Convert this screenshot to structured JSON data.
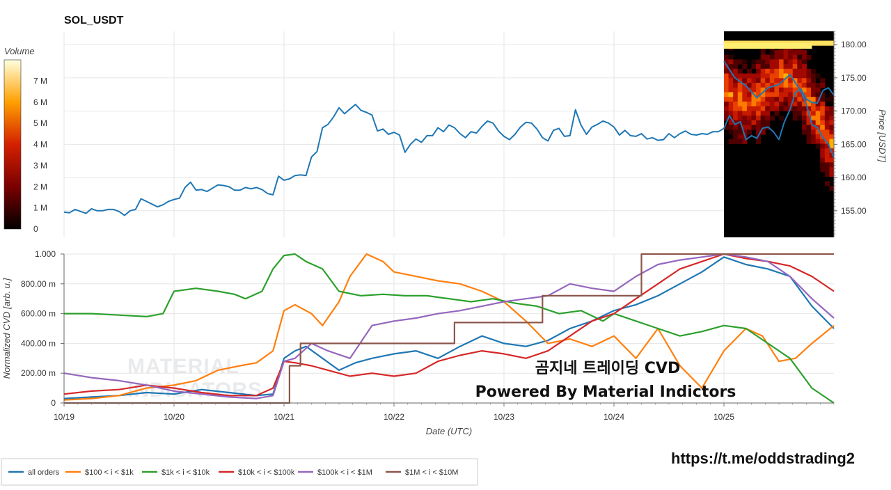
{
  "title": "SOL_USDT",
  "colorbar": {
    "title": "Volume",
    "ticks": [
      "0",
      "1 M",
      "2 M",
      "3 M",
      "4 M",
      "5 M",
      "6 M",
      "7 M"
    ],
    "tick_values": [
      0,
      1,
      2,
      3,
      4,
      5,
      6,
      7
    ],
    "max": 8
  },
  "overlay": {
    "line1": "곰지네 트레이딩 CVD",
    "line2": "Powered By Material Indictors",
    "watermark1": "MATERIAL",
    "watermark2": "INDICATORS"
  },
  "url": "https://t.me/oddstrading2",
  "colors": {
    "all_orders": "#1f77b4",
    "band_100_1k": "#ff7f0e",
    "band_1k_10k": "#2ca02c",
    "band_10k_100k": "#d62728",
    "band_100k_1m": "#9467bd",
    "band_1m_10m": "#8c564b"
  },
  "chart_data": [
    {
      "type": "line",
      "title": "SOL_USDT",
      "xlabel": "",
      "ylabel": "Price [USDT]",
      "xlim": [
        0,
        7.0
      ],
      "ylim": [
        151,
        182
      ],
      "yticks": [
        155,
        160,
        165,
        170,
        175,
        180
      ],
      "ytick_labels": [
        "155.00",
        "160.00",
        "165.00",
        "170.00",
        "175.00",
        "180.00"
      ],
      "grid": true,
      "heatmap_region_x": [
        6.0,
        7.0
      ],
      "series": [
        {
          "name": "",
          "color": "#1f77b4",
          "x": [
            0.0,
            0.05,
            0.1,
            0.15,
            0.2,
            0.25,
            0.3,
            0.35,
            0.4,
            0.45,
            0.5,
            0.55,
            0.6,
            0.65,
            0.7,
            0.75,
            0.8,
            0.85,
            0.9,
            0.95,
            1.0,
            1.05,
            1.1,
            1.15,
            1.2,
            1.25,
            1.3,
            1.35,
            1.4,
            1.45,
            1.5,
            1.55,
            1.6,
            1.65,
            1.7,
            1.75,
            1.8,
            1.85,
            1.9,
            1.95,
            2.0,
            2.05,
            2.1,
            2.15,
            2.2,
            2.25,
            2.3,
            2.35,
            2.4,
            2.45,
            2.5,
            2.55,
            2.6,
            2.65,
            2.7,
            2.75,
            2.8,
            2.85,
            2.9,
            2.95,
            3.0,
            3.05,
            3.1,
            3.15,
            3.2,
            3.25,
            3.3,
            3.35,
            3.4,
            3.45,
            3.5,
            3.55,
            3.6,
            3.65,
            3.7,
            3.75,
            3.8,
            3.85,
            3.9,
            3.95,
            4.0,
            4.05,
            4.1,
            4.15,
            4.2,
            4.25,
            4.3,
            4.35,
            4.4,
            4.45,
            4.5,
            4.55,
            4.6,
            4.65,
            4.7,
            4.75,
            4.8,
            4.85,
            4.9,
            4.95,
            5.0,
            5.05,
            5.1,
            5.15,
            5.2,
            5.25,
            5.3,
            5.35,
            5.4,
            5.45,
            5.5,
            5.55,
            5.6,
            5.65,
            5.7,
            5.75,
            5.8,
            5.85,
            5.9,
            5.95,
            6.0,
            6.05,
            6.1,
            6.15,
            6.2,
            6.25,
            6.3,
            6.35,
            6.4,
            6.45,
            6.5,
            6.55,
            6.6,
            6.65,
            6.7,
            6.75,
            6.8,
            6.85,
            6.9,
            6.95,
            7.0
          ],
          "values": [
            154.8,
            154.7,
            155.2,
            154.9,
            154.6,
            155.3,
            155.0,
            155.0,
            155.2,
            155.2,
            154.9,
            154.3,
            155.0,
            155.2,
            156.8,
            156.4,
            156.0,
            155.6,
            155.9,
            156.4,
            156.7,
            156.9,
            158.5,
            159.3,
            158.1,
            158.2,
            157.9,
            158.4,
            158.9,
            158.8,
            158.6,
            158.1,
            158.1,
            158.5,
            158.3,
            158.5,
            158.2,
            157.6,
            157.4,
            160.2,
            159.6,
            159.8,
            160.3,
            160.4,
            160.3,
            163.1,
            163.9,
            167.5,
            168.0,
            169.1,
            170.5,
            169.6,
            170.3,
            171.0,
            170.1,
            169.8,
            169.4,
            167.0,
            167.3,
            166.5,
            166.8,
            166.4,
            163.8,
            165.0,
            165.8,
            165.3,
            166.3,
            166.3,
            167.5,
            166.9,
            167.9,
            167.5,
            166.6,
            166.0,
            166.9,
            166.7,
            167.7,
            168.5,
            168.2,
            167.0,
            166.2,
            165.7,
            166.5,
            167.6,
            168.3,
            168.2,
            167.3,
            166.0,
            165.5,
            167.1,
            167.4,
            166.2,
            166.3,
            170.2,
            167.9,
            166.5,
            167.6,
            168.0,
            168.5,
            168.2,
            167.6,
            166.4,
            167.1,
            166.3,
            166.2,
            166.6,
            165.8,
            166.0,
            165.6,
            165.7,
            166.6,
            166.0,
            166.6,
            167.0,
            166.5,
            166.4,
            166.6,
            166.5,
            166.9,
            166.9,
            167.4,
            169.3,
            168.0,
            168.4,
            165.7,
            166.3,
            165.9,
            167.4,
            167.6,
            166.9,
            165.7,
            168.4,
            170.2,
            172.8,
            173.3,
            171.8,
            171.3,
            171.2,
            173.1,
            173.5,
            172.4
          ],
          "note_x_units": "days since 10/19"
        }
      ]
    },
    {
      "type": "line",
      "xlabel": "Date (UTC)",
      "ylabel": "Normalized CVD [arb. u.]",
      "xticks": [
        "10/19",
        "10/20",
        "10/21",
        "10/22",
        "10/23",
        "10/24",
        "10/25"
      ],
      "xtick_values": [
        0,
        1,
        2,
        3,
        4,
        5,
        6
      ],
      "xlim": [
        0,
        7.0
      ],
      "ylim": [
        0,
        1.0
      ],
      "yticks": [
        0,
        0.2,
        0.4,
        0.6,
        0.8,
        1.0
      ],
      "ytick_labels": [
        "0",
        "200.00 m",
        "400.00 m",
        "600.00 m",
        "800.00 m",
        "1.000"
      ],
      "grid": true,
      "legend_position": "bottom",
      "series": [
        {
          "name": "all orders",
          "color": "#1f77b4",
          "x": [
            0,
            0.25,
            0.5,
            0.75,
            1.0,
            1.25,
            1.5,
            1.75,
            1.9,
            2.0,
            2.1,
            2.2,
            2.35,
            2.5,
            2.65,
            2.8,
            3.0,
            3.2,
            3.4,
            3.6,
            3.8,
            4.0,
            4.2,
            4.4,
            4.6,
            4.8,
            5.0,
            5.2,
            5.4,
            5.6,
            5.8,
            6.0,
            6.2,
            6.4,
            6.6,
            6.8,
            7.0
          ],
          "values": [
            0.03,
            0.04,
            0.05,
            0.07,
            0.06,
            0.09,
            0.07,
            0.05,
            0.06,
            0.3,
            0.35,
            0.38,
            0.3,
            0.22,
            0.27,
            0.3,
            0.33,
            0.35,
            0.3,
            0.38,
            0.45,
            0.4,
            0.38,
            0.42,
            0.5,
            0.55,
            0.62,
            0.66,
            0.72,
            0.8,
            0.88,
            0.98,
            0.93,
            0.9,
            0.85,
            0.65,
            0.5
          ]
        },
        {
          "name": "$100 < i < $1k",
          "color": "#ff7f0e",
          "x": [
            0,
            0.25,
            0.5,
            0.75,
            1.0,
            1.2,
            1.4,
            1.6,
            1.75,
            1.9,
            2.0,
            2.1,
            2.25,
            2.35,
            2.5,
            2.6,
            2.75,
            2.9,
            3.0,
            3.2,
            3.4,
            3.6,
            3.8,
            4.0,
            4.2,
            4.4,
            4.6,
            4.8,
            5.0,
            5.2,
            5.4,
            5.6,
            5.8,
            6.0,
            6.2,
            6.35,
            6.5,
            6.65,
            6.8,
            7.0
          ],
          "values": [
            0.02,
            0.03,
            0.05,
            0.1,
            0.12,
            0.15,
            0.22,
            0.25,
            0.27,
            0.35,
            0.62,
            0.66,
            0.6,
            0.52,
            0.68,
            0.85,
            1.0,
            0.95,
            0.88,
            0.85,
            0.82,
            0.8,
            0.75,
            0.68,
            0.55,
            0.4,
            0.43,
            0.38,
            0.45,
            0.3,
            0.5,
            0.25,
            0.1,
            0.35,
            0.5,
            0.45,
            0.28,
            0.3,
            0.4,
            0.52
          ]
        },
        {
          "name": "$1k < i < $10k",
          "color": "#2ca02c",
          "x": [
            0,
            0.25,
            0.5,
            0.75,
            0.9,
            1.0,
            1.2,
            1.4,
            1.55,
            1.65,
            1.8,
            1.9,
            2.0,
            2.1,
            2.2,
            2.35,
            2.5,
            2.7,
            2.9,
            3.1,
            3.3,
            3.5,
            3.7,
            3.9,
            4.1,
            4.3,
            4.5,
            4.7,
            4.9,
            5.0,
            5.2,
            5.4,
            5.6,
            5.8,
            6.0,
            6.2,
            6.4,
            6.6,
            6.8,
            7.0
          ],
          "values": [
            0.6,
            0.6,
            0.59,
            0.58,
            0.6,
            0.75,
            0.77,
            0.75,
            0.73,
            0.7,
            0.75,
            0.9,
            0.99,
            1.0,
            0.95,
            0.9,
            0.75,
            0.72,
            0.73,
            0.72,
            0.72,
            0.7,
            0.68,
            0.7,
            0.67,
            0.65,
            0.6,
            0.62,
            0.55,
            0.6,
            0.55,
            0.5,
            0.45,
            0.48,
            0.52,
            0.5,
            0.4,
            0.3,
            0.1,
            0.0
          ]
        },
        {
          "name": "$10k < i < $100k",
          "color": "#d62728",
          "x": [
            0,
            0.25,
            0.5,
            0.75,
            1.0,
            1.25,
            1.5,
            1.75,
            1.9,
            2.0,
            2.1,
            2.25,
            2.4,
            2.6,
            2.8,
            3.0,
            3.2,
            3.4,
            3.6,
            3.8,
            4.0,
            4.2,
            4.4,
            4.6,
            4.8,
            5.0,
            5.2,
            5.4,
            5.6,
            5.8,
            6.0,
            6.2,
            6.4,
            6.6,
            6.8,
            7.0
          ],
          "values": [
            0.06,
            0.08,
            0.09,
            0.12,
            0.1,
            0.07,
            0.05,
            0.05,
            0.1,
            0.28,
            0.27,
            0.25,
            0.22,
            0.18,
            0.2,
            0.18,
            0.2,
            0.28,
            0.32,
            0.35,
            0.33,
            0.3,
            0.35,
            0.45,
            0.55,
            0.6,
            0.7,
            0.8,
            0.9,
            0.95,
            1.0,
            0.97,
            0.95,
            0.92,
            0.85,
            0.75
          ]
        },
        {
          "name": "$100k < i < $1M",
          "color": "#9467bd",
          "x": [
            0,
            0.25,
            0.5,
            0.75,
            1.0,
            1.25,
            1.5,
            1.75,
            1.9,
            2.0,
            2.1,
            2.25,
            2.4,
            2.6,
            2.8,
            3.0,
            3.2,
            3.4,
            3.6,
            3.8,
            4.0,
            4.2,
            4.4,
            4.6,
            4.8,
            5.0,
            5.2,
            5.4,
            5.6,
            5.8,
            6.0,
            6.2,
            6.4,
            6.6,
            6.8,
            7.0
          ],
          "values": [
            0.2,
            0.17,
            0.15,
            0.12,
            0.08,
            0.06,
            0.04,
            0.03,
            0.05,
            0.28,
            0.3,
            0.4,
            0.35,
            0.3,
            0.52,
            0.55,
            0.57,
            0.6,
            0.62,
            0.65,
            0.68,
            0.7,
            0.72,
            0.8,
            0.77,
            0.75,
            0.85,
            0.93,
            0.96,
            0.98,
            1.0,
            0.98,
            0.95,
            0.85,
            0.7,
            0.57
          ]
        },
        {
          "name": "$1M < i < $10M",
          "color": "#8c564b",
          "step": true,
          "x": [
            0,
            2.0,
            2.05,
            2.15,
            3.55,
            4.35,
            5.25,
            7.0
          ],
          "values": [
            0.0,
            0.0,
            0.25,
            0.4,
            0.54,
            0.72,
            1.0,
            1.0
          ]
        }
      ]
    }
  ]
}
